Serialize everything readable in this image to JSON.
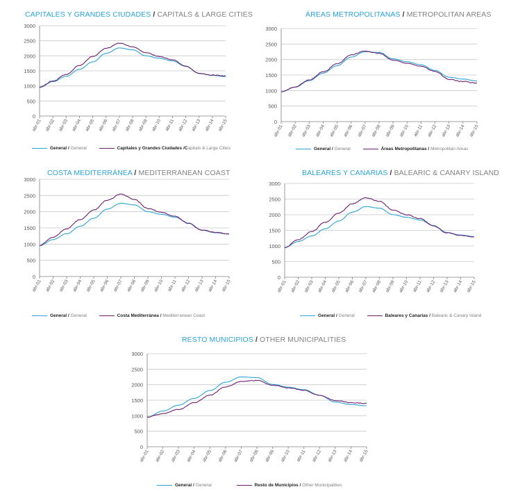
{
  "colors": {
    "general": "#29a3d8",
    "series": "#6b1f6e",
    "grid": "#c8c8c8",
    "axis": "#808080",
    "tick_text": "#555555"
  },
  "chart_data": [
    {
      "type": "line",
      "title_es": "CAPITALES Y GRANDES CIUDADES",
      "title_sep": "/",
      "title_en": "CAPITALS & LARGE CITIES",
      "categories": [
        "abr-01",
        "abr-02",
        "abr-03",
        "abr-04",
        "abr-05",
        "abr-06",
        "abr-07",
        "abr-08",
        "abr-09",
        "abr-10",
        "abr-11",
        "abr-12",
        "abr-13",
        "abr-14",
        "abr-15"
      ],
      "ylim": [
        0,
        3000
      ],
      "yticks": [
        "0",
        "500",
        "1000",
        "1500",
        "2000",
        "2500",
        "3000"
      ],
      "series": [
        {
          "key": "general",
          "values": [
            950,
            1140,
            1320,
            1550,
            1800,
            2080,
            2260,
            2200,
            2000,
            1920,
            1830,
            1650,
            1420,
            1350,
            1310
          ]
        },
        {
          "key": "series",
          "values": [
            960,
            1160,
            1380,
            1680,
            1980,
            2250,
            2420,
            2300,
            2100,
            1980,
            1870,
            1650,
            1420,
            1360,
            1330
          ]
        }
      ],
      "legend": [
        {
          "label_es": "General",
          "sep": "/",
          "label_en": "General"
        },
        {
          "label_es": "Capitales y Grandes Ciudades /C",
          "sep": "",
          "label_en": "apitals & Large Cities"
        }
      ]
    },
    {
      "type": "line",
      "title_es": "ÁREAS METROPOLITANAS",
      "title_sep": "/",
      "title_en": "METROPOLITAN AREAS",
      "categories": [
        "abr-01",
        "abr-02",
        "abr-03",
        "abr-04",
        "abr-05",
        "abr-06",
        "abr-07",
        "abr-08",
        "abr-09",
        "abr-10",
        "abr-11",
        "abr-12",
        "abr-13",
        "abr-14",
        "abr-15"
      ],
      "ylim": [
        0,
        3000
      ],
      "yticks": [
        "0",
        "500",
        "1000",
        "1500",
        "2000",
        "2500",
        "3000"
      ],
      "series": [
        {
          "key": "general",
          "values": [
            960,
            1110,
            1320,
            1560,
            1800,
            2080,
            2250,
            2230,
            2020,
            1930,
            1830,
            1650,
            1430,
            1370,
            1310
          ]
        },
        {
          "key": "series",
          "values": [
            960,
            1120,
            1340,
            1600,
            1860,
            2150,
            2270,
            2200,
            1980,
            1880,
            1780,
            1620,
            1360,
            1290,
            1240
          ]
        }
      ],
      "legend": [
        {
          "label_es": "General",
          "sep": "/",
          "label_en": "General"
        },
        {
          "label_es": "Áreas Metropolitanas",
          "sep": "/",
          "label_en": "Metropolitan Areas"
        }
      ]
    },
    {
      "type": "line",
      "title_es": "COSTA MEDITERRÁNEA",
      "title_sep": "/",
      "title_en": "MEDITERRANEAN COAST",
      "categories": [
        "abr-01",
        "abr-02",
        "abr-03",
        "abr-04",
        "abr-05",
        "abr-06",
        "abr-07",
        "abr-08",
        "abr-09",
        "abr-10",
        "abr-11",
        "abr-12",
        "abr-13",
        "abr-14",
        "abr-15"
      ],
      "ylim": [
        0,
        3000
      ],
      "yticks": [
        "0",
        "500",
        "1000",
        "1500",
        "2000",
        "2500",
        "3000"
      ],
      "series": [
        {
          "key": "general",
          "values": [
            950,
            1140,
            1320,
            1550,
            1800,
            2080,
            2260,
            2210,
            2000,
            1920,
            1830,
            1650,
            1430,
            1350,
            1310
          ]
        },
        {
          "key": "series",
          "values": [
            960,
            1210,
            1470,
            1760,
            2050,
            2350,
            2540,
            2380,
            2100,
            1980,
            1860,
            1640,
            1430,
            1360,
            1310
          ]
        }
      ],
      "legend": [
        {
          "label_es": "General",
          "sep": "/",
          "label_en": "General"
        },
        {
          "label_es": "Costa Mediterránea",
          "sep": "/",
          "label_en": "Mediterranean Coast"
        }
      ]
    },
    {
      "type": "line",
      "title_es": "BALEARES Y CANARIAS",
      "title_sep": "/",
      "title_en": "BALEARIC & CANARY ISLAND",
      "categories": [
        "abr-01",
        "abr-02",
        "abr-03",
        "abr-04",
        "abr-05",
        "abr-06",
        "abr-07",
        "abr-08",
        "abr-09",
        "abr-10",
        "abr-11",
        "abr-12",
        "abr-13",
        "abr-14",
        "abr-15"
      ],
      "ylim": [
        0,
        3000
      ],
      "yticks": [
        "0",
        "500",
        "1000",
        "1500",
        "2000",
        "2500",
        "3000"
      ],
      "series": [
        {
          "key": "general",
          "values": [
            950,
            1140,
            1320,
            1550,
            1800,
            2080,
            2260,
            2210,
            2000,
            1920,
            1830,
            1650,
            1430,
            1350,
            1300
          ]
        },
        {
          "key": "series",
          "values": [
            950,
            1200,
            1460,
            1760,
            2050,
            2350,
            2540,
            2430,
            2150,
            2000,
            1880,
            1640,
            1420,
            1340,
            1290
          ]
        }
      ],
      "legend": [
        {
          "label_es": "General",
          "sep": "/",
          "label_en": "General"
        },
        {
          "label_es": "Baleares y Canarias",
          "sep": "/",
          "label_en": "Balearic & Canary Island"
        }
      ]
    },
    {
      "type": "line",
      "title_es": "RESTO MUNICIPIOS",
      "title_sep": "/",
      "title_en": "OTHER MUNICIPALITIES",
      "categories": [
        "abr-01",
        "abr-02",
        "abr-03",
        "abr-04",
        "abr-05",
        "abr-06",
        "abr-07",
        "abr-08",
        "abr-09",
        "abr-10",
        "abr-11",
        "abr-12",
        "abr-13",
        "abr-14",
        "abr-15"
      ],
      "ylim": [
        0,
        3000
      ],
      "yticks": [
        "0",
        "500",
        "1000",
        "1500",
        "2000",
        "2500",
        "3000"
      ],
      "series": [
        {
          "key": "general",
          "values": [
            950,
            1150,
            1340,
            1560,
            1810,
            2080,
            2250,
            2230,
            2010,
            1920,
            1840,
            1660,
            1440,
            1360,
            1320
          ]
        },
        {
          "key": "series",
          "values": [
            960,
            1070,
            1200,
            1420,
            1660,
            1930,
            2100,
            2140,
            1980,
            1900,
            1820,
            1660,
            1490,
            1420,
            1400
          ]
        }
      ],
      "legend": [
        {
          "label_es": "General",
          "sep": "/",
          "label_en": "General"
        },
        {
          "label_es": "Resto de Municipios",
          "sep": "/",
          "label_en": "Other Municipalities"
        }
      ]
    }
  ]
}
